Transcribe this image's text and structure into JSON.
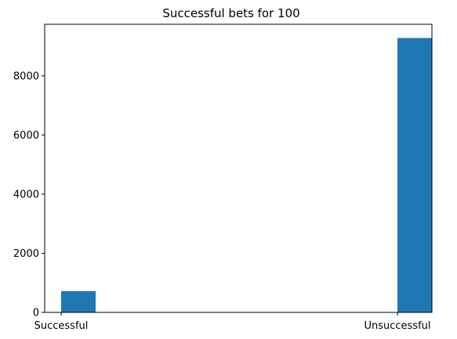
{
  "chart_data": {
    "type": "bar",
    "title": "Successful bets for 100",
    "xlabel": "",
    "ylabel": "",
    "categories": [
      "Successful",
      "Unsuccessful"
    ],
    "values": [
      720,
      9280
    ],
    "ylim": [
      0,
      9744
    ],
    "yticks": [
      0,
      2000,
      4000,
      6000,
      8000
    ],
    "ytick_labels": [
      "0",
      "2000",
      "4000",
      "6000",
      "8000"
    ],
    "bar_color": "#1f77b4",
    "grid": false,
    "legend": "none"
  }
}
